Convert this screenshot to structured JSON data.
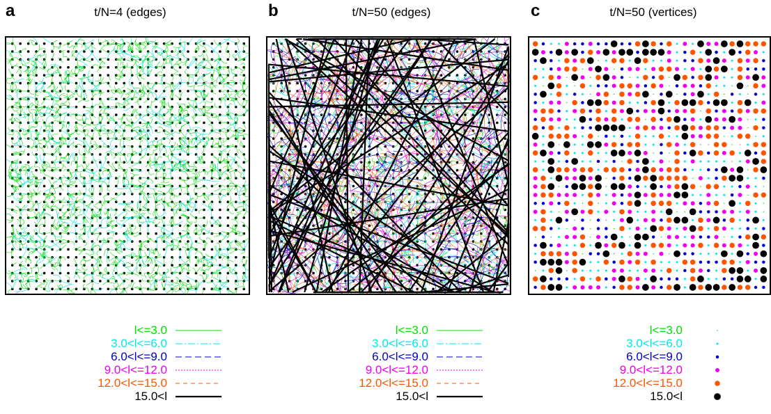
{
  "panels": [
    {
      "letter": "a",
      "title": "t/N=4 (edges)",
      "mode": "edges-sparse"
    },
    {
      "letter": "b",
      "title": "t/N=50 (edges)",
      "mode": "edges-dense"
    },
    {
      "letter": "c",
      "title": "t/N=50 (vertices)",
      "mode": "vertices"
    }
  ],
  "legend": [
    {
      "label": "l<=3.0",
      "color": "#00e000",
      "dash": "",
      "width": 1,
      "dot": 1
    },
    {
      "label": "3.0<l<=6.0",
      "color": "#00e8e8",
      "dash": "10 3 2 3",
      "width": 1,
      "dot": 2
    },
    {
      "label": "6.0<l<=9.0",
      "color": "#0000cc",
      "dash": "9 5",
      "width": 1,
      "dot": 3
    },
    {
      "label": "9.0<l<=12.0",
      "color": "#ee00ee",
      "dash": "2 2",
      "width": 1,
      "dot": 4
    },
    {
      "label": "12.0<l<=15.0",
      "color": "#ff5500",
      "dash": "6 5",
      "width": 1,
      "dot": 5
    },
    {
      "label": "15.0<l",
      "color": "#000000",
      "dash": "",
      "width": 2.2,
      "dot": 6.5
    }
  ]
}
